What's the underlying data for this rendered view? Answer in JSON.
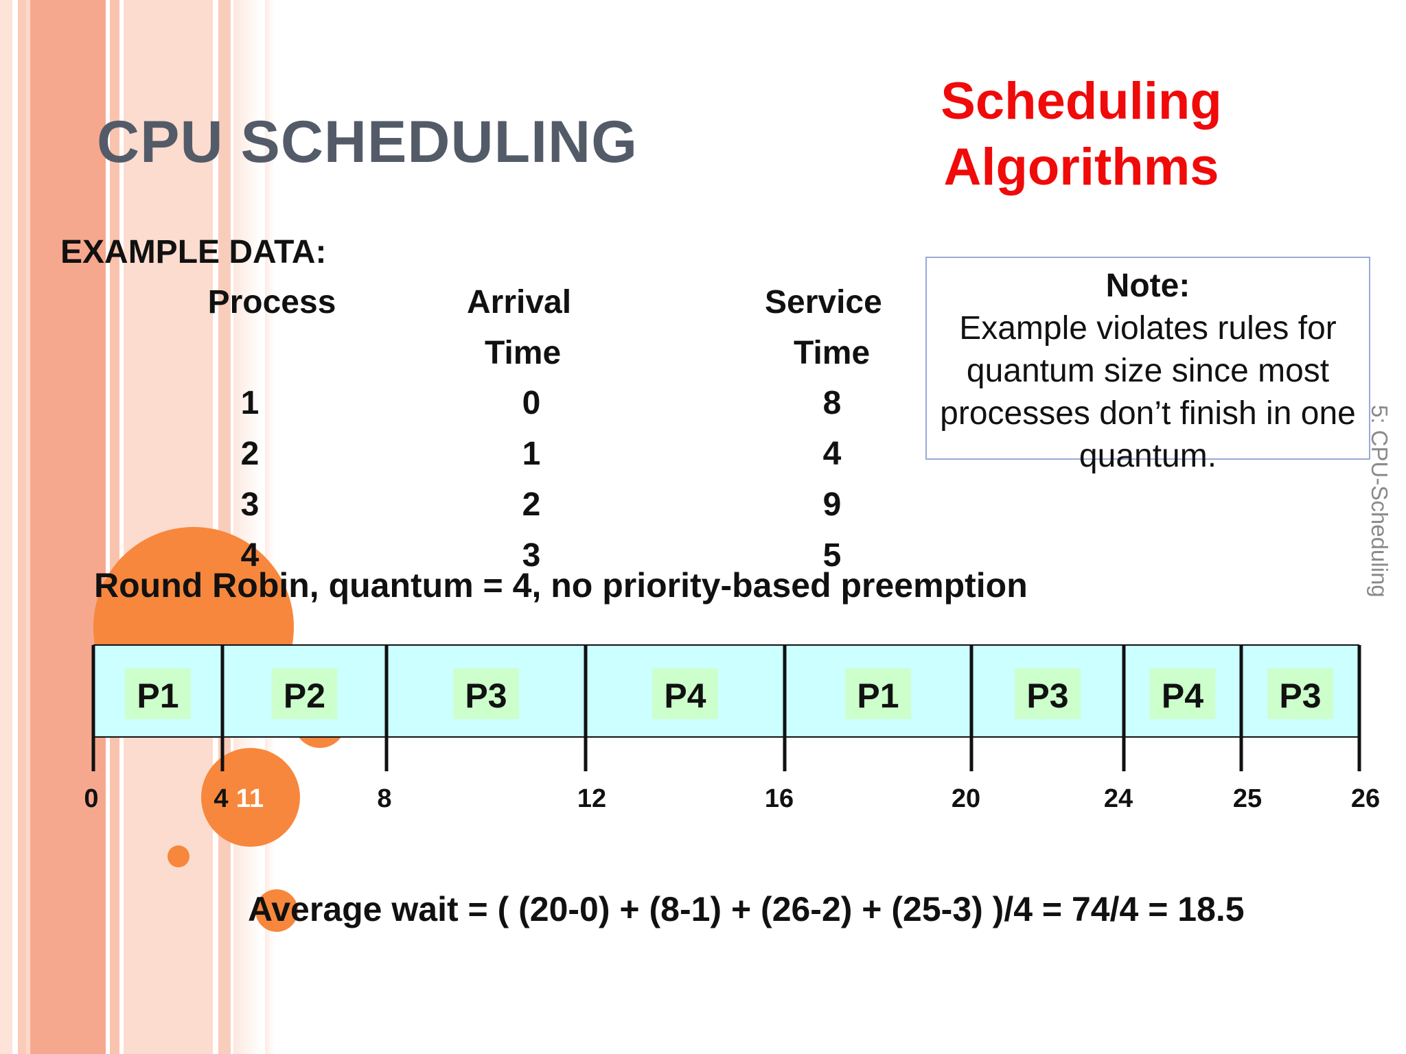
{
  "slide": {
    "title": "CPU SCHEDULING",
    "subtitle_line1": "Scheduling",
    "subtitle_line2": "Algorithms",
    "side_label": "5: CPU-Scheduling"
  },
  "example": {
    "label": "EXAMPLE DATA:",
    "headers": {
      "process": "Process",
      "arrival_line1": "Arrival",
      "arrival_line2": "Time",
      "service_line1": "Service",
      "service_line2": "Time"
    },
    "rows": [
      {
        "process": "1",
        "arrival": "0",
        "service": "8"
      },
      {
        "process": "2",
        "arrival": "1",
        "service": "4"
      },
      {
        "process": "3",
        "arrival": "2",
        "service": "9"
      },
      {
        "process": "4",
        "arrival": "3",
        "service": "5"
      }
    ]
  },
  "note": {
    "title": "Note:",
    "body": "Example violates rules for quantum size since most processes don’t finish in one quantum."
  },
  "round_robin": {
    "caption": "Round Robin, quantum = 4, no priority-based preemption",
    "stray_label": "11",
    "fill_color": "#ccffff",
    "label_color": "#ccffcc"
  },
  "chart_data": {
    "type": "gantt",
    "segments": [
      {
        "label": "P1",
        "start": 0,
        "end": 4
      },
      {
        "label": "P2",
        "start": 4,
        "end": 8
      },
      {
        "label": "P3",
        "start": 8,
        "end": 12
      },
      {
        "label": "P4",
        "start": 12,
        "end": 16
      },
      {
        "label": "P1",
        "start": 16,
        "end": 20
      },
      {
        "label": "P3",
        "start": 20,
        "end": 24
      },
      {
        "label": "P4",
        "start": 24,
        "end": 25
      },
      {
        "label": "P3",
        "start": 25,
        "end": 26
      }
    ],
    "ticks": [
      "0",
      "4",
      "8",
      "12",
      "16",
      "20",
      "24",
      "25",
      "26"
    ]
  },
  "average_wait": "Average wait = ( (20-0) + (8-1) + (26-2) + (25-3) )/4 = 74/4 = 18.5"
}
